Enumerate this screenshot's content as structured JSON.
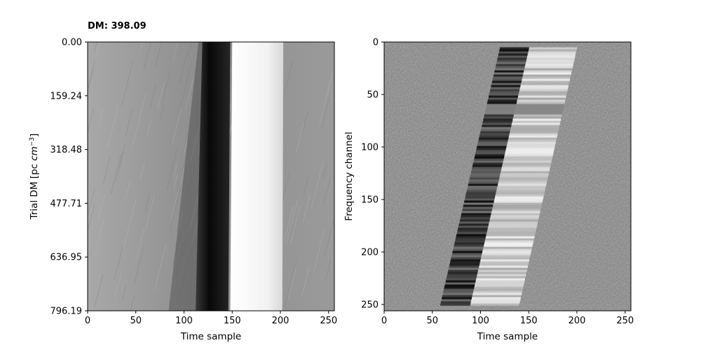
{
  "chart_data": [
    {
      "type": "heatmap",
      "title": "DM: 398.09",
      "xlabel": "Time sample",
      "ylabel": "Trial DM [pc $cm^{-3}$]",
      "xlim": [
        0,
        256
      ],
      "ylim": [
        0.0,
        796.19
      ],
      "x_ticks": [
        "0",
        "50",
        "100",
        "150",
        "200",
        "250"
      ],
      "x_tick_values": [
        0,
        50,
        100,
        150,
        200,
        250
      ],
      "y_ticks": [
        "0.00",
        "159.24",
        "318.48",
        "477.71",
        "636.95",
        "796.19"
      ],
      "y_tick_values": [
        0.0,
        159.24,
        318.48,
        477.71,
        636.95,
        796.19
      ],
      "colormap": "gray",
      "features": [
        {
          "name": "dark band",
          "x_start_top": 119,
          "x_end_top": 148,
          "x_start_bottom": 112,
          "x_end_bottom": 146
        },
        {
          "name": "bright band",
          "x_start_top": 150,
          "x_end_top": 203,
          "x_start_bottom": 148,
          "x_end_bottom": 202
        }
      ]
    },
    {
      "type": "heatmap",
      "xlabel": "Time sample",
      "ylabel": "Frequency channel",
      "xlim": [
        0,
        256
      ],
      "ylim": [
        0,
        256
      ],
      "x_ticks": [
        "0",
        "50",
        "100",
        "150",
        "200",
        "250"
      ],
      "x_tick_values": [
        0,
        50,
        100,
        150,
        200,
        250
      ],
      "y_ticks": [
        "0",
        "50",
        "100",
        "150",
        "200",
        "250"
      ],
      "y_tick_values": [
        0,
        50,
        100,
        150,
        200,
        250
      ],
      "colormap": "gray",
      "features": [
        {
          "name": "dispersed pulse dark edge",
          "x_at_top": 120,
          "x_at_bottom": 58,
          "channel_top": 5,
          "channel_bottom": 250
        },
        {
          "name": "dispersed pulse bright edge",
          "x_at_top": 200,
          "x_at_bottom": 140
        }
      ]
    }
  ]
}
